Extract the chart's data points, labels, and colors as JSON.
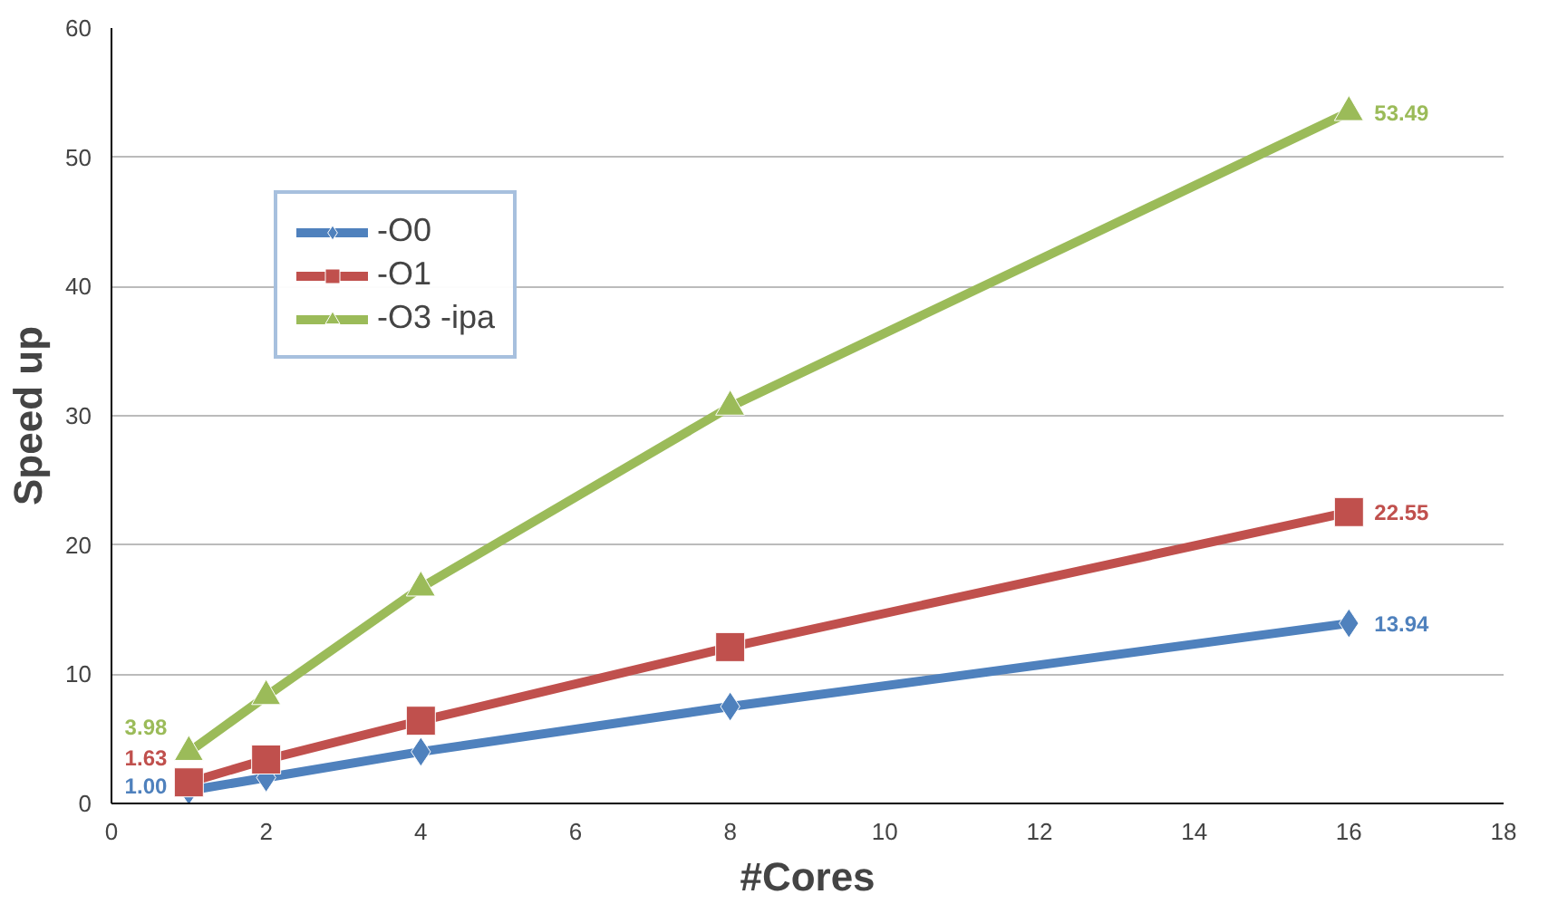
{
  "chart_data": {
    "type": "line",
    "xlabel": "#Cores",
    "ylabel": "Speed up",
    "x": [
      1,
      2,
      4,
      8,
      16
    ],
    "series": [
      {
        "name": "-O0",
        "color": "#4f81bd",
        "marker": "diamond",
        "values": [
          1.0,
          2.0,
          4.0,
          7.5,
          13.94
        ],
        "value_labels": [
          "1.00",
          null,
          null,
          null,
          "13.94"
        ]
      },
      {
        "name": "-O1",
        "color": "#c0504d",
        "marker": "square",
        "values": [
          1.63,
          3.4,
          6.4,
          12.1,
          22.55
        ],
        "value_labels": [
          "1.63",
          null,
          null,
          null,
          "22.55"
        ]
      },
      {
        "name": "-O3 -ipa",
        "color": "#9bbb59",
        "marker": "triangle",
        "values": [
          3.98,
          8.3,
          16.7,
          30.7,
          53.49
        ],
        "value_labels": [
          "3.98",
          null,
          null,
          null,
          "53.49"
        ]
      }
    ],
    "xlim": [
      0,
      18
    ],
    "xticks": [
      0,
      2,
      4,
      6,
      8,
      10,
      12,
      14,
      16,
      18
    ],
    "ylim": [
      0,
      60
    ],
    "yticks": [
      0,
      10,
      20,
      30,
      40,
      50,
      60
    ],
    "grid": "y",
    "legend": "top left",
    "line_style": "solid"
  }
}
